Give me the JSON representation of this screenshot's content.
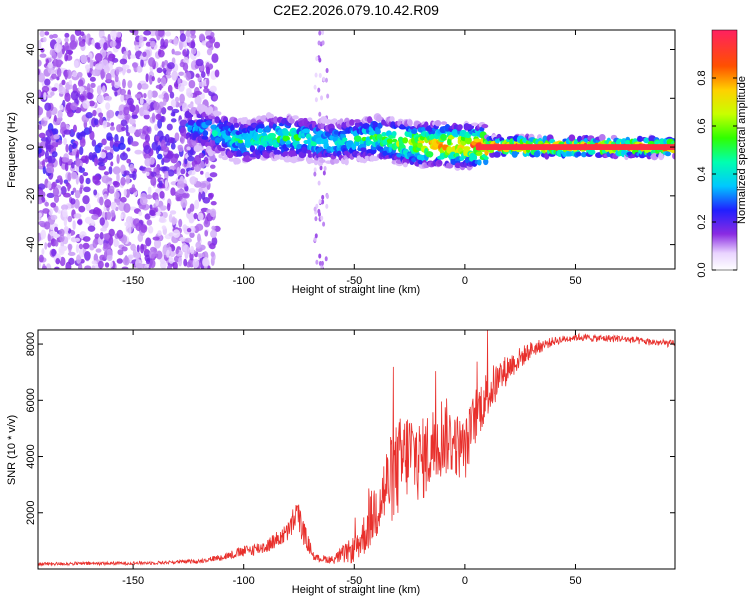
{
  "title": "C2E2.2026.079.10.42.R09",
  "chart_data": [
    {
      "type": "heatmap",
      "name": "spectrogram",
      "xlabel": "Height of straight line (km)",
      "ylabel": "Frequency (Hz)",
      "xlim": [
        -193,
        95
      ],
      "ylim": [
        -50,
        48
      ],
      "xticks": [
        -150,
        -100,
        -50,
        0,
        50
      ],
      "yticks": [
        -40,
        -20,
        0,
        20,
        40
      ],
      "colorbar": {
        "label": "Normalized spectral amplitude",
        "ticks": [
          "0.0",
          "0.2",
          "0.4",
          "0.6",
          "0.8"
        ],
        "tick_values": [
          0.0,
          0.2,
          0.4,
          0.6,
          0.8
        ],
        "range": [
          0,
          1
        ]
      },
      "noise_region_km": [
        -193,
        -120
      ],
      "ridge": [
        {
          "x": -120,
          "f": 8,
          "amp": 0.35
        },
        {
          "x": -110,
          "f": 5,
          "amp": 0.45
        },
        {
          "x": -100,
          "f": 2,
          "amp": 0.5
        },
        {
          "x": -90,
          "f": 4,
          "amp": 0.55
        },
        {
          "x": -80,
          "f": 4,
          "amp": 0.55
        },
        {
          "x": -70,
          "f": 3,
          "amp": 0.5
        },
        {
          "x": -60,
          "f": 2,
          "amp": 0.45
        },
        {
          "x": -50,
          "f": 3,
          "amp": 0.5
        },
        {
          "x": -40,
          "f": 4,
          "amp": 0.55
        },
        {
          "x": -30,
          "f": 2,
          "amp": 0.65
        },
        {
          "x": -20,
          "f": 1,
          "amp": 0.8
        },
        {
          "x": -10,
          "f": 1,
          "amp": 0.85
        },
        {
          "x": 0,
          "f": 0.5,
          "amp": 0.9
        },
        {
          "x": 10,
          "f": 0.3,
          "amp": 0.95
        },
        {
          "x": 50,
          "f": 0,
          "amp": 1.0
        },
        {
          "x": 95,
          "f": 0,
          "amp": 0.95
        }
      ]
    },
    {
      "type": "line",
      "name": "snr",
      "xlabel": "Height of straight line (km)",
      "ylabel": "SNR (10 * v/v)",
      "xlim": [
        -193,
        95
      ],
      "ylim": [
        0,
        8500
      ],
      "xticks": [
        -150,
        -100,
        -50,
        0,
        50
      ],
      "yticks": [
        2000,
        4000,
        6000,
        8000
      ],
      "color": "#e8302c",
      "series": [
        {
          "name": "SNR",
          "x": [
            -193,
            -160,
            -140,
            -120,
            -110,
            -100,
            -90,
            -80,
            -76,
            -72,
            -68,
            -60,
            -50,
            -45,
            -40,
            -35,
            -30,
            -25,
            -20,
            -15,
            -10,
            -5,
            0,
            5,
            10,
            20,
            30,
            40,
            50,
            60,
            70,
            80,
            95
          ],
          "y": [
            180,
            200,
            220,
            280,
            420,
            620,
            800,
            1300,
            2000,
            1100,
            400,
            330,
            700,
            1300,
            2200,
            3000,
            3600,
            4200,
            3800,
            4300,
            4800,
            4500,
            4200,
            5500,
            6200,
            7200,
            7800,
            8100,
            8250,
            8200,
            8200,
            8100,
            8000
          ],
          "noise": [
            60,
            60,
            60,
            70,
            120,
            200,
            250,
            350,
            600,
            400,
            120,
            150,
            500,
            800,
            1200,
            1500,
            1800,
            1600,
            1500,
            1500,
            1500,
            1200,
            1100,
            1000,
            900,
            500,
            300,
            150,
            130,
            130,
            130,
            130,
            130
          ]
        }
      ]
    }
  ]
}
